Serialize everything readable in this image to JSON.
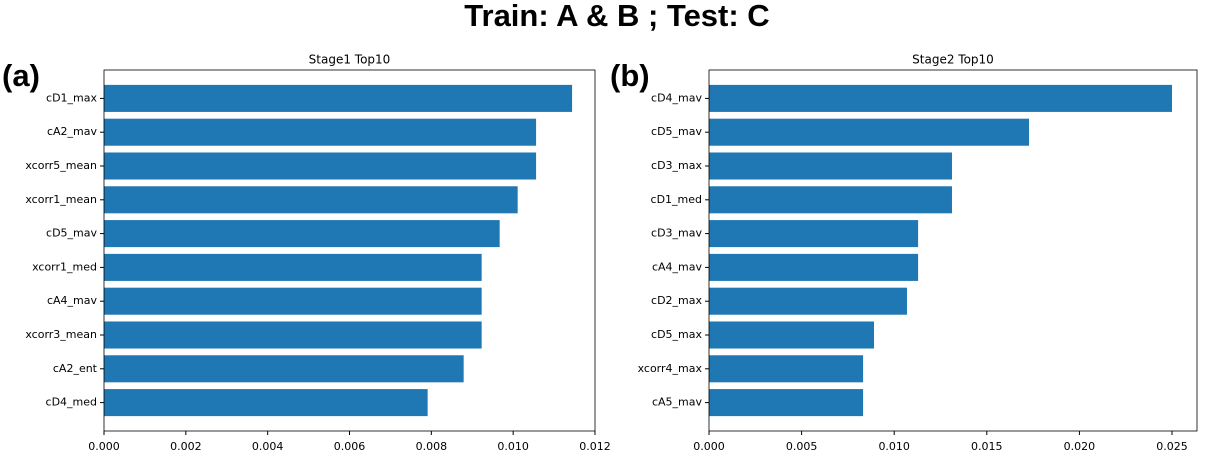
{
  "title": "Train: A & B ; Test: C",
  "chart_data": [
    {
      "type": "barh",
      "panel_label": "(a)",
      "title": "Stage1 Top10",
      "color": "#1f77b4",
      "categories": [
        "cD1_max",
        "cA2_mav",
        "xcorr5_mean",
        "xcorr1_mean",
        "cD5_mav",
        "xcorr1_med",
        "cA4_mav",
        "xcorr3_mean",
        "cA2_ent",
        "cD4_med"
      ],
      "values": [
        0.01144,
        0.01056,
        0.01056,
        0.01011,
        0.00967,
        0.00923,
        0.00923,
        0.00923,
        0.00879,
        0.00791
      ],
      "xlim": [
        0,
        0.012
      ],
      "xticks": [
        {
          "value": 0,
          "label": "0.000"
        },
        {
          "value": 0.002,
          "label": "0.002"
        },
        {
          "value": 0.004,
          "label": "0.004"
        },
        {
          "value": 0.006,
          "label": "0.006"
        },
        {
          "value": 0.008,
          "label": "0.008"
        },
        {
          "value": 0.01,
          "label": "0.010"
        },
        {
          "value": 0.012,
          "label": "0.012"
        }
      ]
    },
    {
      "type": "barh",
      "panel_label": "(b)",
      "title": "Stage2 Top10",
      "color": "#1f77b4",
      "categories": [
        "cD4_mav",
        "cD5_mav",
        "cD3_max",
        "cD1_med",
        "cD3_mav",
        "cA4_mav",
        "cD2_max",
        "cD5_max",
        "xcorr4_max",
        "cA5_mav"
      ],
      "values": [
        0.025,
        0.01728,
        0.01312,
        0.01312,
        0.01129,
        0.01129,
        0.01069,
        0.00891,
        0.00832,
        0.00832
      ],
      "xlim": [
        0,
        0.02635
      ],
      "xticks": [
        {
          "value": 0,
          "label": "0.000"
        },
        {
          "value": 0.005,
          "label": "0.005"
        },
        {
          "value": 0.01,
          "label": "0.010"
        },
        {
          "value": 0.015,
          "label": "0.015"
        },
        {
          "value": 0.02,
          "label": "0.020"
        },
        {
          "value": 0.025,
          "label": "0.025"
        }
      ]
    }
  ]
}
